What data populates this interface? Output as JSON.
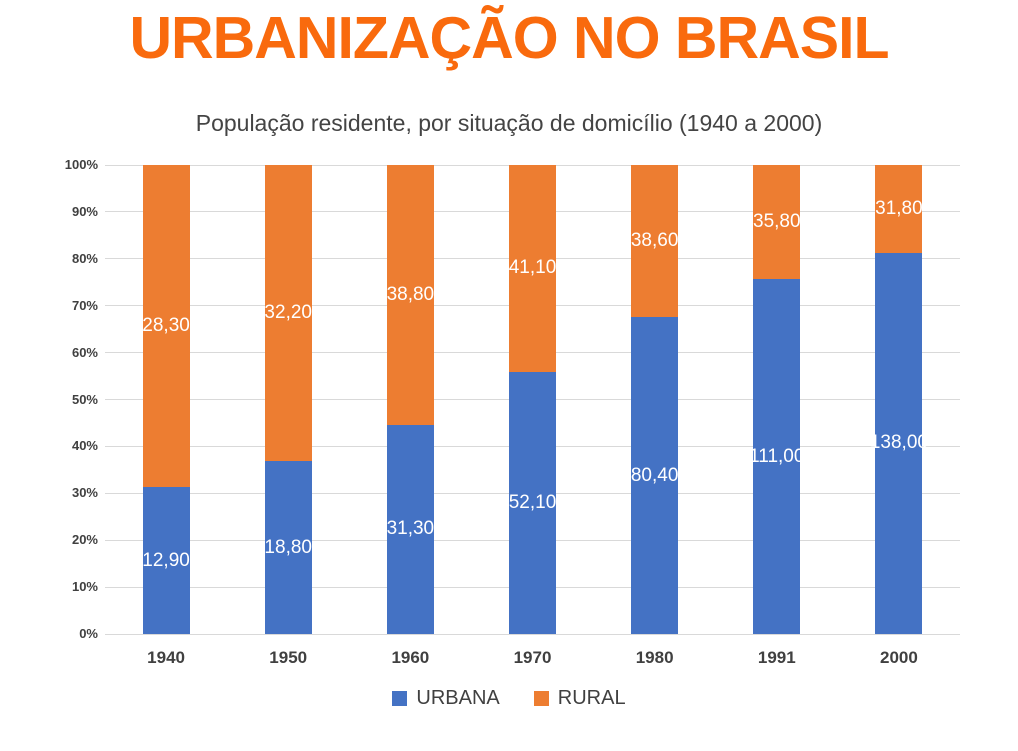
{
  "title": "URBANIZAÇÃO NO BRASIL",
  "subtitle": "População residente, por situação de domicílio (1940 a 2000)",
  "colors": {
    "title": "#F96A0D",
    "urban": "#4472C4",
    "rural": "#ED7D31",
    "grid": "#D9D9D9",
    "axis_text": "#404040",
    "value_label_text": "#FFFFFF",
    "background": "#FFFFFF"
  },
  "chart_data": {
    "type": "bar",
    "variant": "stacked-100-percent",
    "title": "População residente, por situação de domicílio (1940 a 2000)",
    "categories": [
      "1940",
      "1950",
      "1960",
      "1970",
      "1980",
      "1991",
      "2000"
    ],
    "series": [
      {
        "name": "URBANA",
        "color": "#4472C4",
        "values": [
          12.9,
          18.8,
          31.3,
          52.1,
          80.4,
          111.0,
          138.0
        ],
        "labels": [
          "12,90",
          "18,80",
          "31,30",
          "52,10",
          "80,40",
          "111,00",
          "138,00"
        ]
      },
      {
        "name": "RURAL",
        "color": "#ED7D31",
        "values": [
          28.3,
          32.2,
          38.8,
          41.1,
          38.6,
          35.8,
          31.8
        ],
        "labels": [
          "28,30",
          "32,20",
          "38,80",
          "41,10",
          "38,60",
          "35,80",
          "31,80"
        ]
      }
    ],
    "y_ticks": [
      "0%",
      "10%",
      "20%",
      "30%",
      "40%",
      "50%",
      "60%",
      "70%",
      "80%",
      "90%",
      "100%"
    ],
    "ylim": [
      0,
      100
    ],
    "grid": "horizontal",
    "legend": [
      "URBANA",
      "RURAL"
    ],
    "legend_position": "bottom"
  }
}
